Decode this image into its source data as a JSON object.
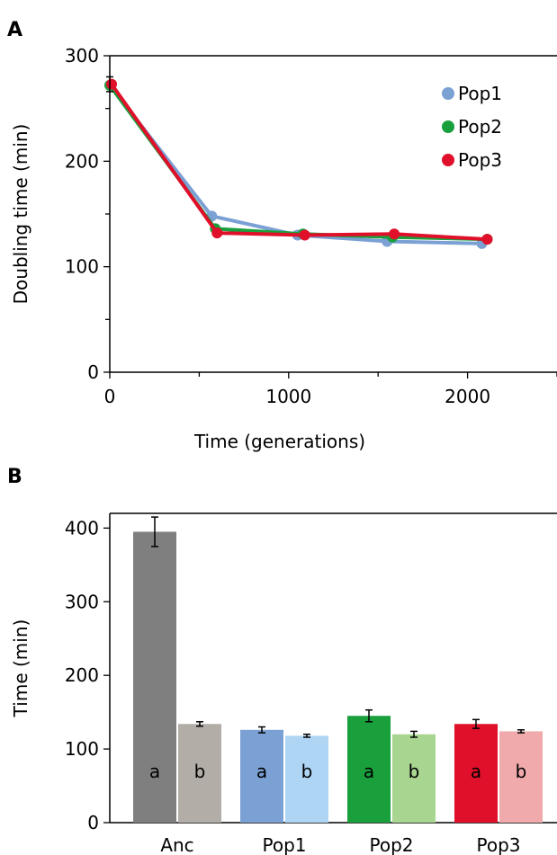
{
  "chart_data": [
    {
      "type": "line",
      "panel_label": "A",
      "xlabel": "Time (generations)",
      "ylabel": "Doubling time (min)",
      "xlim": [
        0,
        2500
      ],
      "ylim": [
        0,
        300
      ],
      "xticks": [
        0,
        1000,
        2000
      ],
      "yticks": [
        0,
        100,
        200,
        300
      ],
      "grid": false,
      "legend_position": "top-right",
      "series": [
        {
          "name": "Pop1",
          "color": "#7aa0d4",
          "x": [
            0,
            570,
            1050,
            1550,
            2080
          ],
          "y": [
            272,
            148,
            130,
            124,
            122
          ]
        },
        {
          "name": "Pop2",
          "color": "#19a03c",
          "x": [
            0,
            590,
            1080,
            1580,
            2110
          ],
          "y": [
            272,
            136,
            131,
            128,
            126
          ]
        },
        {
          "name": "Pop3",
          "color": "#e0102a",
          "x": [
            10,
            600,
            1090,
            1590,
            2110
          ],
          "y": [
            273,
            132,
            130,
            131,
            126
          ]
        }
      ],
      "error_bars": [
        {
          "x": 0,
          "y": 273,
          "err": 7
        }
      ]
    },
    {
      "type": "bar",
      "panel_label": "B",
      "ylabel": "Time (min)",
      "ylim": [
        0,
        420
      ],
      "yticks": [
        0,
        100,
        200,
        300,
        400
      ],
      "grid": false,
      "categories": [
        "Anc",
        "Pop1",
        "Pop2",
        "Pop3"
      ],
      "bars": [
        {
          "group": "Anc",
          "label": "a",
          "value": 395,
          "err": 20,
          "color": "#7f7f7f"
        },
        {
          "group": "Anc",
          "label": "b",
          "value": 134,
          "err": 3,
          "color": "#b3ada7"
        },
        {
          "group": "Pop1",
          "label": "a",
          "value": 126,
          "err": 4,
          "color": "#7aa0d4"
        },
        {
          "group": "Pop1",
          "label": "b",
          "value": 118,
          "err": 2,
          "color": "#aed5f4"
        },
        {
          "group": "Pop2",
          "label": "a",
          "value": 145,
          "err": 8,
          "color": "#19a03c"
        },
        {
          "group": "Pop2",
          "label": "b",
          "value": 120,
          "err": 4,
          "color": "#a8d590"
        },
        {
          "group": "Pop3",
          "label": "a",
          "value": 134,
          "err": 6,
          "color": "#e0102a"
        },
        {
          "group": "Pop3",
          "label": "b",
          "value": 124,
          "err": 2,
          "color": "#f0aaab"
        }
      ]
    }
  ]
}
